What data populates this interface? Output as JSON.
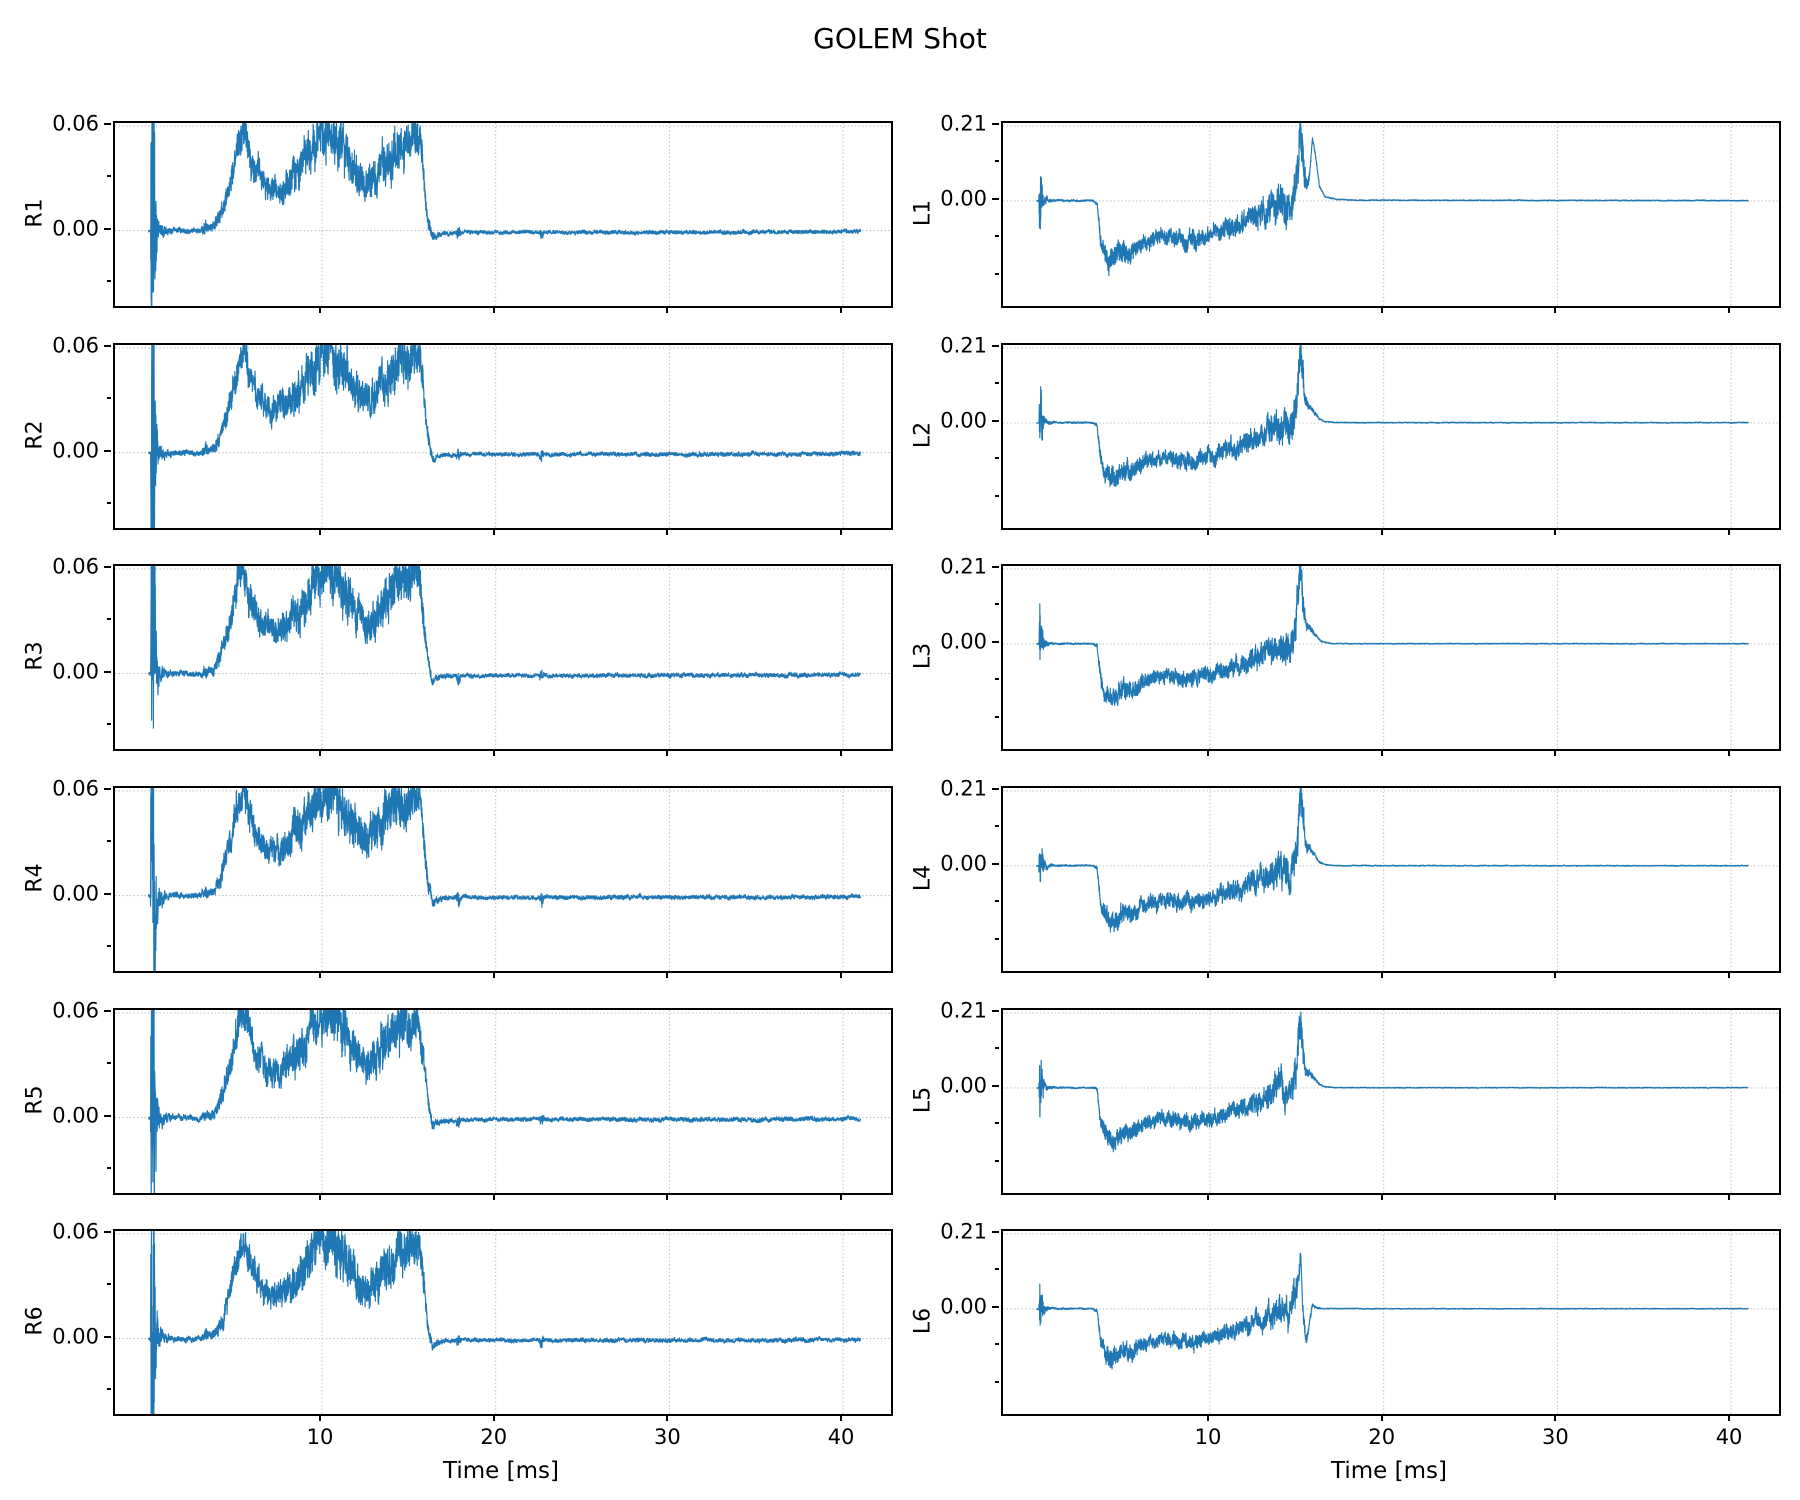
{
  "title": "GOLEM Shot",
  "style": {
    "line_color": "#1f77b4",
    "grid_color": "#b0b0b0",
    "spine_color": "#000000",
    "background": "#ffffff"
  },
  "xaxis": {
    "label": "Time [ms]",
    "ticks": [
      10,
      20,
      30,
      40
    ],
    "tick_labels": [
      "10",
      "20",
      "30",
      "40"
    ],
    "lim": [
      -1.92,
      42.76
    ]
  },
  "columns": {
    "left": {
      "ylim": [
        -0.0432,
        0.0617
      ],
      "yticks": [
        {
          "value": 0.06,
          "label": "0.06"
        },
        {
          "value": 0.0,
          "label": "0.00"
        }
      ],
      "minor_yticks": [
        0.03,
        -0.03
      ]
    },
    "right": {
      "ylim": [
        -0.294,
        0.2182
      ],
      "yticks": [
        {
          "value": 0.21,
          "label": "0.21"
        },
        {
          "value": 0.0,
          "label": "0.00"
        }
      ],
      "minor_yticks": [
        0.105,
        -0.105,
        -0.21
      ]
    }
  },
  "chart_data": {
    "type": "line",
    "title": "GOLEM Shot",
    "xlabel": "Time [ms]",
    "x_unit": "ms",
    "t_range": [
      0,
      41
    ],
    "sample_step_ms": 0.01,
    "grid": "dotted",
    "legend": "none",
    "panels": [
      {
        "label": "R1",
        "col": "left",
        "row": 0,
        "shape": "R",
        "seed": 3,
        "amp": 0.97
      },
      {
        "label": "R2",
        "col": "left",
        "row": 1,
        "shape": "R",
        "seed": 7,
        "amp": 1.0
      },
      {
        "label": "R3",
        "col": "left",
        "row": 2,
        "shape": "R",
        "seed": 12,
        "amp": 1.02
      },
      {
        "label": "R4",
        "col": "left",
        "row": 3,
        "shape": "R",
        "seed": 21,
        "amp": 1.05
      },
      {
        "label": "R5",
        "col": "left",
        "row": 4,
        "shape": "R",
        "seed": 33,
        "amp": 1.04
      },
      {
        "label": "R6",
        "col": "left",
        "row": 5,
        "shape": "R",
        "seed": 44,
        "amp": 1.0
      },
      {
        "label": "L1",
        "col": "right",
        "row": 0,
        "shape": "L1",
        "seed": 51,
        "amp": 1.05
      },
      {
        "label": "L2",
        "col": "right",
        "row": 1,
        "shape": "L",
        "seed": 62,
        "amp": 1.0
      },
      {
        "label": "L3",
        "col": "right",
        "row": 2,
        "shape": "L",
        "seed": 73,
        "amp": 0.96
      },
      {
        "label": "L4",
        "col": "right",
        "row": 3,
        "shape": "L",
        "seed": 85,
        "amp": 0.99
      },
      {
        "label": "L5",
        "col": "right",
        "row": 4,
        "shape": "L",
        "seed": 96,
        "amp": 0.92
      },
      {
        "label": "L6",
        "col": "right",
        "row": 5,
        "shape": "L6",
        "seed": 107,
        "amp": 0.88
      }
    ],
    "envelopes": {
      "R": [
        [
          0,
          0,
          0.0006
        ],
        [
          0.12,
          0,
          0.001
        ],
        [
          0.18,
          0,
          0.13
        ],
        [
          0.3,
          0,
          0.1
        ],
        [
          0.42,
          0,
          0.025
        ],
        [
          0.6,
          0,
          0.007
        ],
        [
          0.9,
          0,
          0.003
        ],
        [
          1.4,
          0,
          0.0015
        ],
        [
          3.0,
          0,
          0.0013
        ],
        [
          3.3,
          0.0015,
          0.004
        ],
        [
          3.45,
          0.001,
          0.002
        ],
        [
          3.8,
          0.003,
          0.003
        ],
        [
          4.2,
          0.01,
          0.005
        ],
        [
          4.7,
          0.028,
          0.007
        ],
        [
          5.15,
          0.05,
          0.009
        ],
        [
          5.45,
          0.058,
          0.009
        ],
        [
          5.75,
          0.048,
          0.009
        ],
        [
          6.2,
          0.034,
          0.008
        ],
        [
          6.8,
          0.026,
          0.007
        ],
        [
          7.5,
          0.024,
          0.007
        ],
        [
          8.1,
          0.03,
          0.009
        ],
        [
          8.7,
          0.035,
          0.011
        ],
        [
          9.3,
          0.046,
          0.012
        ],
        [
          9.8,
          0.055,
          0.013
        ],
        [
          10.4,
          0.059,
          0.013
        ],
        [
          10.9,
          0.051,
          0.014
        ],
        [
          11.4,
          0.046,
          0.013
        ],
        [
          12.0,
          0.034,
          0.01
        ],
        [
          12.6,
          0.028,
          0.009
        ],
        [
          13.2,
          0.034,
          0.011
        ],
        [
          13.8,
          0.044,
          0.013
        ],
        [
          14.5,
          0.05,
          0.013
        ],
        [
          15.1,
          0.053,
          0.012
        ],
        [
          15.6,
          0.057,
          0.01
        ],
        [
          15.85,
          0.034,
          0.007
        ],
        [
          16.1,
          0.008,
          0.004
        ],
        [
          16.35,
          -0.004,
          0.0025
        ],
        [
          16.8,
          -0.002,
          0.0013
        ],
        [
          17.7,
          -0.001,
          0.001
        ],
        [
          17.85,
          -0.0015,
          0.0045
        ],
        [
          18.0,
          -0.001,
          0.001
        ],
        [
          22.5,
          -0.001,
          0.001
        ],
        [
          22.65,
          -0.0015,
          0.004
        ],
        [
          22.8,
          -0.001,
          0.001
        ],
        [
          28,
          -0.001,
          0.0011
        ],
        [
          35,
          -0.001,
          0.0011
        ],
        [
          41,
          -0.0005,
          0.0011
        ]
      ],
      "L1": [
        [
          0,
          0,
          0.0008
        ],
        [
          0.14,
          0,
          0.0015
        ],
        [
          0.2,
          0,
          0.105
        ],
        [
          0.3,
          0,
          0.06
        ],
        [
          0.45,
          0,
          0.015
        ],
        [
          0.7,
          0.001,
          0.005
        ],
        [
          1.1,
          0.001,
          0.0025
        ],
        [
          3.25,
          0.001,
          0.002
        ],
        [
          3.5,
          -0.005,
          0.006
        ],
        [
          3.7,
          -0.1,
          0.02
        ],
        [
          4.0,
          -0.145,
          0.027
        ],
        [
          4.5,
          -0.155,
          0.03
        ],
        [
          5.0,
          -0.13,
          0.027
        ],
        [
          5.5,
          -0.14,
          0.025
        ],
        [
          6.1,
          -0.112,
          0.022
        ],
        [
          6.8,
          -0.1,
          0.02
        ],
        [
          7.5,
          -0.096,
          0.02
        ],
        [
          8.2,
          -0.1,
          0.022
        ],
        [
          8.9,
          -0.105,
          0.024
        ],
        [
          9.6,
          -0.096,
          0.022
        ],
        [
          10.3,
          -0.087,
          0.022
        ],
        [
          11.0,
          -0.076,
          0.024
        ],
        [
          11.7,
          -0.062,
          0.026
        ],
        [
          12.4,
          -0.05,
          0.028
        ],
        [
          13.1,
          -0.032,
          0.032
        ],
        [
          13.7,
          -0.016,
          0.04
        ],
        [
          14.2,
          -0.002,
          0.046
        ],
        [
          14.6,
          -0.022,
          0.042
        ],
        [
          14.95,
          0.04,
          0.05
        ],
        [
          15.2,
          0.21,
          0.06
        ],
        [
          15.35,
          0.12,
          0.05
        ],
        [
          15.55,
          0.045,
          0.02
        ],
        [
          15.7,
          0.06,
          0.01
        ],
        [
          15.9,
          0.165,
          0.006
        ],
        [
          16.05,
          0.13,
          0.005
        ],
        [
          16.3,
          0.04,
          0.003
        ],
        [
          16.6,
          0.012,
          0.002
        ],
        [
          17.2,
          0.004,
          0.0012
        ],
        [
          18.5,
          0.002,
          0.0012
        ],
        [
          41,
          0.001,
          0.0012
        ]
      ],
      "L": [
        [
          0,
          0,
          0.0008
        ],
        [
          0.14,
          0,
          0.0015
        ],
        [
          0.2,
          0,
          0.105
        ],
        [
          0.3,
          0,
          0.06
        ],
        [
          0.45,
          0,
          0.015
        ],
        [
          0.7,
          0.001,
          0.005
        ],
        [
          1.1,
          0.001,
          0.0025
        ],
        [
          3.25,
          0.001,
          0.002
        ],
        [
          3.5,
          -0.005,
          0.006
        ],
        [
          3.7,
          -0.1,
          0.02
        ],
        [
          4.0,
          -0.145,
          0.027
        ],
        [
          4.5,
          -0.155,
          0.03
        ],
        [
          5.0,
          -0.13,
          0.027
        ],
        [
          5.5,
          -0.14,
          0.025
        ],
        [
          6.1,
          -0.112,
          0.022
        ],
        [
          6.8,
          -0.1,
          0.02
        ],
        [
          7.5,
          -0.096,
          0.02
        ],
        [
          8.2,
          -0.1,
          0.022
        ],
        [
          8.9,
          -0.105,
          0.024
        ],
        [
          9.6,
          -0.096,
          0.022
        ],
        [
          10.3,
          -0.087,
          0.022
        ],
        [
          11.0,
          -0.076,
          0.024
        ],
        [
          11.7,
          -0.062,
          0.026
        ],
        [
          12.4,
          -0.05,
          0.028
        ],
        [
          13.1,
          -0.032,
          0.032
        ],
        [
          13.7,
          -0.016,
          0.04
        ],
        [
          14.2,
          -0.002,
          0.046
        ],
        [
          14.6,
          -0.022,
          0.042
        ],
        [
          14.95,
          0.04,
          0.05
        ],
        [
          15.2,
          0.21,
          0.06
        ],
        [
          15.35,
          0.12,
          0.05
        ],
        [
          15.5,
          0.05,
          0.018
        ],
        [
          15.75,
          0.045,
          0.01
        ],
        [
          16.0,
          0.03,
          0.006
        ],
        [
          16.3,
          0.012,
          0.003
        ],
        [
          16.6,
          0.004,
          0.0015
        ],
        [
          17.2,
          0.001,
          0.0012
        ],
        [
          20,
          0.0008,
          0.0012
        ],
        [
          41,
          0.0008,
          0.0012
        ]
      ],
      "L6": [
        [
          0,
          0,
          0.0008
        ],
        [
          0.14,
          0,
          0.0015
        ],
        [
          0.2,
          0,
          0.105
        ],
        [
          0.3,
          0,
          0.06
        ],
        [
          0.45,
          0,
          0.015
        ],
        [
          0.7,
          0.001,
          0.005
        ],
        [
          1.1,
          0.001,
          0.0025
        ],
        [
          3.25,
          0.001,
          0.002
        ],
        [
          3.5,
          -0.005,
          0.006
        ],
        [
          3.7,
          -0.1,
          0.02
        ],
        [
          4.0,
          -0.145,
          0.027
        ],
        [
          4.5,
          -0.155,
          0.03
        ],
        [
          5.0,
          -0.13,
          0.027
        ],
        [
          5.5,
          -0.14,
          0.025
        ],
        [
          6.1,
          -0.112,
          0.022
        ],
        [
          6.8,
          -0.1,
          0.02
        ],
        [
          7.5,
          -0.096,
          0.02
        ],
        [
          8.2,
          -0.1,
          0.022
        ],
        [
          8.9,
          -0.105,
          0.024
        ],
        [
          9.6,
          -0.096,
          0.022
        ],
        [
          10.3,
          -0.087,
          0.022
        ],
        [
          11.0,
          -0.076,
          0.024
        ],
        [
          11.7,
          -0.062,
          0.026
        ],
        [
          12.4,
          -0.05,
          0.028
        ],
        [
          13.1,
          -0.032,
          0.032
        ],
        [
          13.7,
          -0.016,
          0.04
        ],
        [
          14.2,
          -0.002,
          0.046
        ],
        [
          14.6,
          -0.022,
          0.042
        ],
        [
          14.95,
          0.06,
          0.05
        ],
        [
          15.1,
          0.08,
          0.03
        ],
        [
          15.22,
          0.175,
          0.02
        ],
        [
          15.32,
          0.02,
          0.02
        ],
        [
          15.5,
          -0.1,
          0.02
        ],
        [
          15.7,
          -0.055,
          0.012
        ],
        [
          15.9,
          0.012,
          0.006
        ],
        [
          16.1,
          0.005,
          0.003
        ],
        [
          16.5,
          0.001,
          0.0015
        ],
        [
          20,
          0.0008,
          0.0012
        ],
        [
          41,
          0.0008,
          0.0012
        ]
      ]
    }
  }
}
